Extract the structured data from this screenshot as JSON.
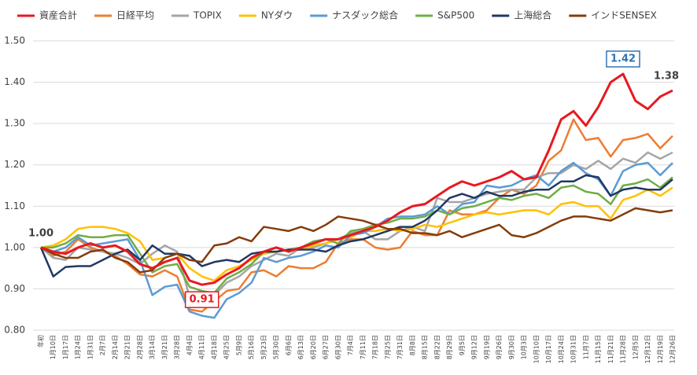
{
  "chart_data": {
    "type": "line",
    "categories": [
      "年初",
      "1月10日",
      "1月17日",
      "1月24日",
      "1月31日",
      "2月7日",
      "2月14日",
      "2月21日",
      "2月28日",
      "3月14日",
      "3月21日",
      "3月28日",
      "4月4日",
      "4月11日",
      "4月18日",
      "4月25日",
      "5月9日",
      "5月16日",
      "5月23日",
      "5月30日",
      "6月6日",
      "6月13日",
      "6月20日",
      "6月27日",
      "6月30日",
      "7月4日",
      "7月11日",
      "7月18日",
      "7月25日",
      "7月31日",
      "8月8日",
      "8月15日",
      "8月22日",
      "8月29日",
      "9月5日",
      "9月12日",
      "9月19日",
      "9月26日",
      "9月30日",
      "10月3日",
      "10月10日",
      "10月17日",
      "10月24日",
      "10月31日",
      "11月7日",
      "11月15日",
      "11月21日",
      "11月28日",
      "12月5日",
      "12月12日",
      "12月19日",
      "12月26日"
    ],
    "ylim": [
      0.8,
      1.5
    ],
    "yticks": [
      {
        "value": 0.8,
        "label": "0.80"
      },
      {
        "value": 0.9,
        "label": "0.90"
      },
      {
        "value": 1.0,
        "label": "1.00"
      },
      {
        "value": 1.1,
        "label": "1.10"
      },
      {
        "value": 1.2,
        "label": "1.20"
      },
      {
        "value": 1.3,
        "label": "1.30"
      },
      {
        "value": 1.4,
        "label": "1.40"
      },
      {
        "value": 1.5,
        "label": "1.50"
      }
    ],
    "grid": true,
    "legend": "top",
    "series": [
      {
        "name": "資産合計",
        "color": "#e8191f",
        "values": [
          1.0,
          0.99,
          0.985,
          1.0,
          1.01,
          1.0,
          1.005,
          0.99,
          0.96,
          0.95,
          0.965,
          0.975,
          0.92,
          0.91,
          0.915,
          0.935,
          0.95,
          0.975,
          0.99,
          1.0,
          0.99,
          1.0,
          1.01,
          1.02,
          1.02,
          1.03,
          1.04,
          1.05,
          1.065,
          1.085,
          1.1,
          1.105,
          1.125,
          1.145,
          1.16,
          1.15,
          1.16,
          1.17,
          1.185,
          1.165,
          1.17,
          1.235,
          1.31,
          1.33,
          1.295,
          1.34,
          1.4,
          1.42,
          1.355,
          1.335,
          1.365,
          1.38
        ],
        "value_labels": [
          "1.00",
          null,
          null,
          null,
          null,
          null,
          null,
          null,
          null,
          null,
          null,
          null,
          null,
          "0.91",
          null,
          null,
          null,
          null,
          null,
          null,
          null,
          null,
          null,
          null,
          null,
          null,
          null,
          null,
          null,
          null,
          null,
          null,
          null,
          null,
          null,
          null,
          null,
          null,
          null,
          null,
          null,
          null,
          null,
          null,
          null,
          null,
          null,
          "1.42",
          null,
          null,
          null,
          "1.38"
        ]
      },
      {
        "name": "日経平均",
        "color": "#ed7d31",
        "values": [
          1.0,
          0.98,
          0.99,
          1.02,
          1.0,
          0.99,
          0.98,
          0.96,
          0.935,
          0.93,
          0.945,
          0.93,
          0.85,
          0.845,
          0.87,
          0.895,
          0.9,
          0.94,
          0.945,
          0.93,
          0.955,
          0.95,
          0.95,
          0.965,
          1.01,
          1.02,
          1.02,
          1.0,
          0.995,
          1.0,
          1.04,
          1.03,
          1.03,
          1.09,
          1.08,
          1.08,
          1.09,
          1.12,
          1.14,
          1.13,
          1.15,
          1.21,
          1.235,
          1.31,
          1.26,
          1.265,
          1.22,
          1.26,
          1.265,
          1.275,
          1.24,
          1.27
        ]
      },
      {
        "name": "TOPIX",
        "color": "#a5a5a5",
        "values": [
          1.0,
          0.975,
          0.97,
          1.0,
          0.995,
          0.99,
          0.985,
          0.975,
          0.96,
          0.985,
          1.005,
          0.99,
          0.88,
          0.86,
          0.885,
          0.915,
          0.93,
          0.955,
          0.97,
          0.985,
          0.98,
          1.0,
          1.0,
          1.01,
          1.02,
          1.035,
          1.04,
          1.02,
          1.02,
          1.04,
          1.05,
          1.04,
          1.12,
          1.11,
          1.11,
          1.12,
          1.13,
          1.135,
          1.14,
          1.14,
          1.17,
          1.18,
          1.18,
          1.2,
          1.19,
          1.21,
          1.19,
          1.215,
          1.205,
          1.23,
          1.215,
          1.23
        ]
      },
      {
        "name": "NYダウ",
        "color": "#ffc000",
        "values": [
          1.0,
          1.005,
          1.02,
          1.045,
          1.05,
          1.05,
          1.045,
          1.035,
          1.015,
          0.97,
          0.975,
          0.985,
          0.95,
          0.93,
          0.92,
          0.945,
          0.955,
          0.97,
          0.985,
          0.99,
          0.995,
          0.995,
          1.005,
          1.01,
          1.02,
          1.025,
          1.04,
          1.04,
          1.045,
          1.04,
          1.045,
          1.055,
          1.05,
          1.06,
          1.07,
          1.08,
          1.085,
          1.08,
          1.085,
          1.09,
          1.09,
          1.08,
          1.105,
          1.11,
          1.1,
          1.1,
          1.07,
          1.115,
          1.125,
          1.14,
          1.125,
          1.145
        ]
      },
      {
        "name": "ナスダック総合",
        "color": "#5b9bd5",
        "values": [
          1.0,
          0.99,
          1.0,
          1.025,
          1.005,
          1.01,
          1.015,
          1.02,
          0.97,
          0.885,
          0.905,
          0.91,
          0.845,
          0.835,
          0.83,
          0.875,
          0.89,
          0.915,
          0.975,
          0.965,
          0.975,
          0.98,
          0.99,
          1.005,
          1.0,
          1.03,
          1.035,
          1.05,
          1.07,
          1.075,
          1.075,
          1.08,
          1.1,
          1.08,
          1.105,
          1.11,
          1.15,
          1.145,
          1.15,
          1.165,
          1.175,
          1.15,
          1.185,
          1.205,
          1.18,
          1.165,
          1.125,
          1.185,
          1.2,
          1.205,
          1.175,
          1.205
        ]
      },
      {
        "name": "S&P500",
        "color": "#70ad47",
        "values": [
          1.0,
          1.0,
          1.01,
          1.03,
          1.025,
          1.025,
          1.03,
          1.03,
          0.985,
          0.94,
          0.955,
          0.96,
          0.905,
          0.895,
          0.89,
          0.925,
          0.94,
          0.96,
          0.99,
          0.99,
          0.995,
          1.0,
          1.015,
          1.02,
          1.01,
          1.04,
          1.045,
          1.055,
          1.06,
          1.07,
          1.07,
          1.075,
          1.09,
          1.08,
          1.095,
          1.1,
          1.11,
          1.12,
          1.115,
          1.125,
          1.13,
          1.12,
          1.145,
          1.15,
          1.135,
          1.13,
          1.105,
          1.15,
          1.155,
          1.165,
          1.145,
          1.17
        ]
      },
      {
        "name": "上海総合",
        "color": "#203864",
        "values": [
          1.0,
          0.93,
          0.953,
          0.955,
          0.955,
          0.97,
          0.985,
          0.995,
          0.97,
          1.005,
          0.985,
          0.985,
          0.98,
          0.955,
          0.965,
          0.97,
          0.965,
          0.985,
          0.99,
          0.99,
          0.995,
          0.995,
          0.995,
          0.99,
          1.005,
          1.015,
          1.02,
          1.03,
          1.04,
          1.05,
          1.05,
          1.065,
          1.09,
          1.12,
          1.13,
          1.12,
          1.135,
          1.125,
          1.125,
          1.135,
          1.14,
          1.14,
          1.16,
          1.16,
          1.175,
          1.17,
          1.125,
          1.14,
          1.145,
          1.14,
          1.14,
          1.165
        ]
      },
      {
        "name": "インドSENSEX",
        "color": "#843c0c",
        "values": [
          1.0,
          0.985,
          0.975,
          0.975,
          0.99,
          0.995,
          0.975,
          0.965,
          0.94,
          0.945,
          0.975,
          0.985,
          0.97,
          0.965,
          1.005,
          1.01,
          1.025,
          1.015,
          1.05,
          1.045,
          1.04,
          1.05,
          1.04,
          1.055,
          1.075,
          1.07,
          1.065,
          1.055,
          1.045,
          1.045,
          1.035,
          1.035,
          1.03,
          1.04,
          1.025,
          1.035,
          1.045,
          1.055,
          1.03,
          1.025,
          1.035,
          1.05,
          1.065,
          1.075,
          1.075,
          1.07,
          1.065,
          1.08,
          1.095,
          1.09,
          1.085,
          1.09
        ]
      }
    ]
  }
}
